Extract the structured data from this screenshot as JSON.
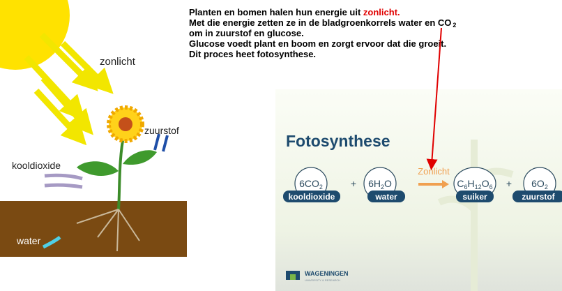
{
  "intro": {
    "lines": [
      {
        "text": "Planten en bomen  halen hun energie uit ",
        "highlight": "zonlicht."
      },
      {
        "text": "Met die energie zetten ze in de bladgroenkorrels water en CO",
        "sub": "2"
      },
      {
        "text": "om in zuurstof en glucose."
      },
      {
        "text": "Glucose voedt  plant en boom  en zorgt ervoor dat die groeit."
      },
      {
        "text": "Dit proces heet  fotosynthese."
      }
    ]
  },
  "diagram": {
    "labels": [
      "zonlicht",
      "zuurstof",
      "kooldioxide",
      "water"
    ]
  },
  "slide": {
    "title": "Fotosynthese",
    "formula": {
      "reactants": [
        [
          {
            "text": "6CO"
          },
          {
            "sub": "2"
          }
        ],
        [
          {
            "text": "6H"
          },
          {
            "sub": "2"
          },
          {
            "text": "O"
          }
        ]
      ],
      "plus": "+",
      "arrow": "Zonlicht",
      "products": [
        [
          {
            "text": "C"
          },
          {
            "sub": "6"
          },
          {
            "text": "H"
          },
          {
            "sub": "12"
          },
          {
            "text": "O"
          },
          {
            "sub": "6"
          }
        ],
        [
          {
            "text": "6O"
          },
          {
            "sub": "2"
          }
        ]
      ]
    },
    "names": [
      "kooldioxide",
      "water",
      "suiker",
      "zuurstof"
    ],
    "logo": {
      "name": "WAGENINGEN",
      "sub": "UNIVERSITY & RESEARCH"
    }
  }
}
